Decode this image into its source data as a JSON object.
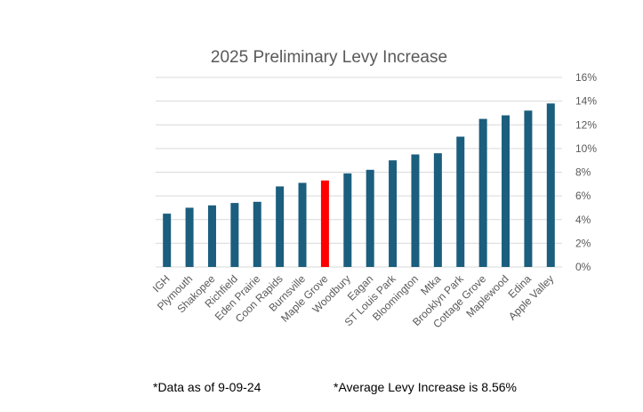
{
  "chart_data": {
    "type": "bar",
    "title": "2025 Preliminary Levy Increase",
    "categories": [
      "IGH",
      "Plymouth",
      "Shakopee",
      "Richfield",
      "Eden Prairie",
      "Coon Rapids",
      "Burnsville",
      "Maple Grove",
      "Woodbury",
      "Eagan",
      "ST Louis Park",
      "Bloomington",
      "Mtka",
      "Brooklyn Park",
      "Cottage Grove",
      "Maplewood",
      "Edina",
      "Apple Valley"
    ],
    "values": [
      4.5,
      5.0,
      5.2,
      5.4,
      5.5,
      6.8,
      7.1,
      7.3,
      7.9,
      8.2,
      9.0,
      9.5,
      9.6,
      11.0,
      12.5,
      12.8,
      13.2,
      13.8
    ],
    "colors": [
      "#1b5e7e",
      "#1b5e7e",
      "#1b5e7e",
      "#1b5e7e",
      "#1b5e7e",
      "#1b5e7e",
      "#1b5e7e",
      "#ff0000",
      "#1b5e7e",
      "#1b5e7e",
      "#1b5e7e",
      "#1b5e7e",
      "#1b5e7e",
      "#1b5e7e",
      "#1b5e7e",
      "#1b5e7e",
      "#1b5e7e",
      "#1b5e7e"
    ],
    "ylim": [
      0,
      16
    ],
    "yticks": [
      {
        "value": 0,
        "label": "0%"
      },
      {
        "value": 2,
        "label": "2%"
      },
      {
        "value": 4,
        "label": "4%"
      },
      {
        "value": 6,
        "label": "6%"
      },
      {
        "value": 8,
        "label": "8%"
      },
      {
        "value": 10,
        "label": "10%"
      },
      {
        "value": 12,
        "label": "12%"
      },
      {
        "value": 14,
        "label": "14%"
      },
      {
        "value": 16,
        "label": "16%"
      }
    ],
    "grid": true,
    "notes": [
      "*Data as of 9-09-24",
      "*Average Levy Increase is 8.56%"
    ]
  }
}
